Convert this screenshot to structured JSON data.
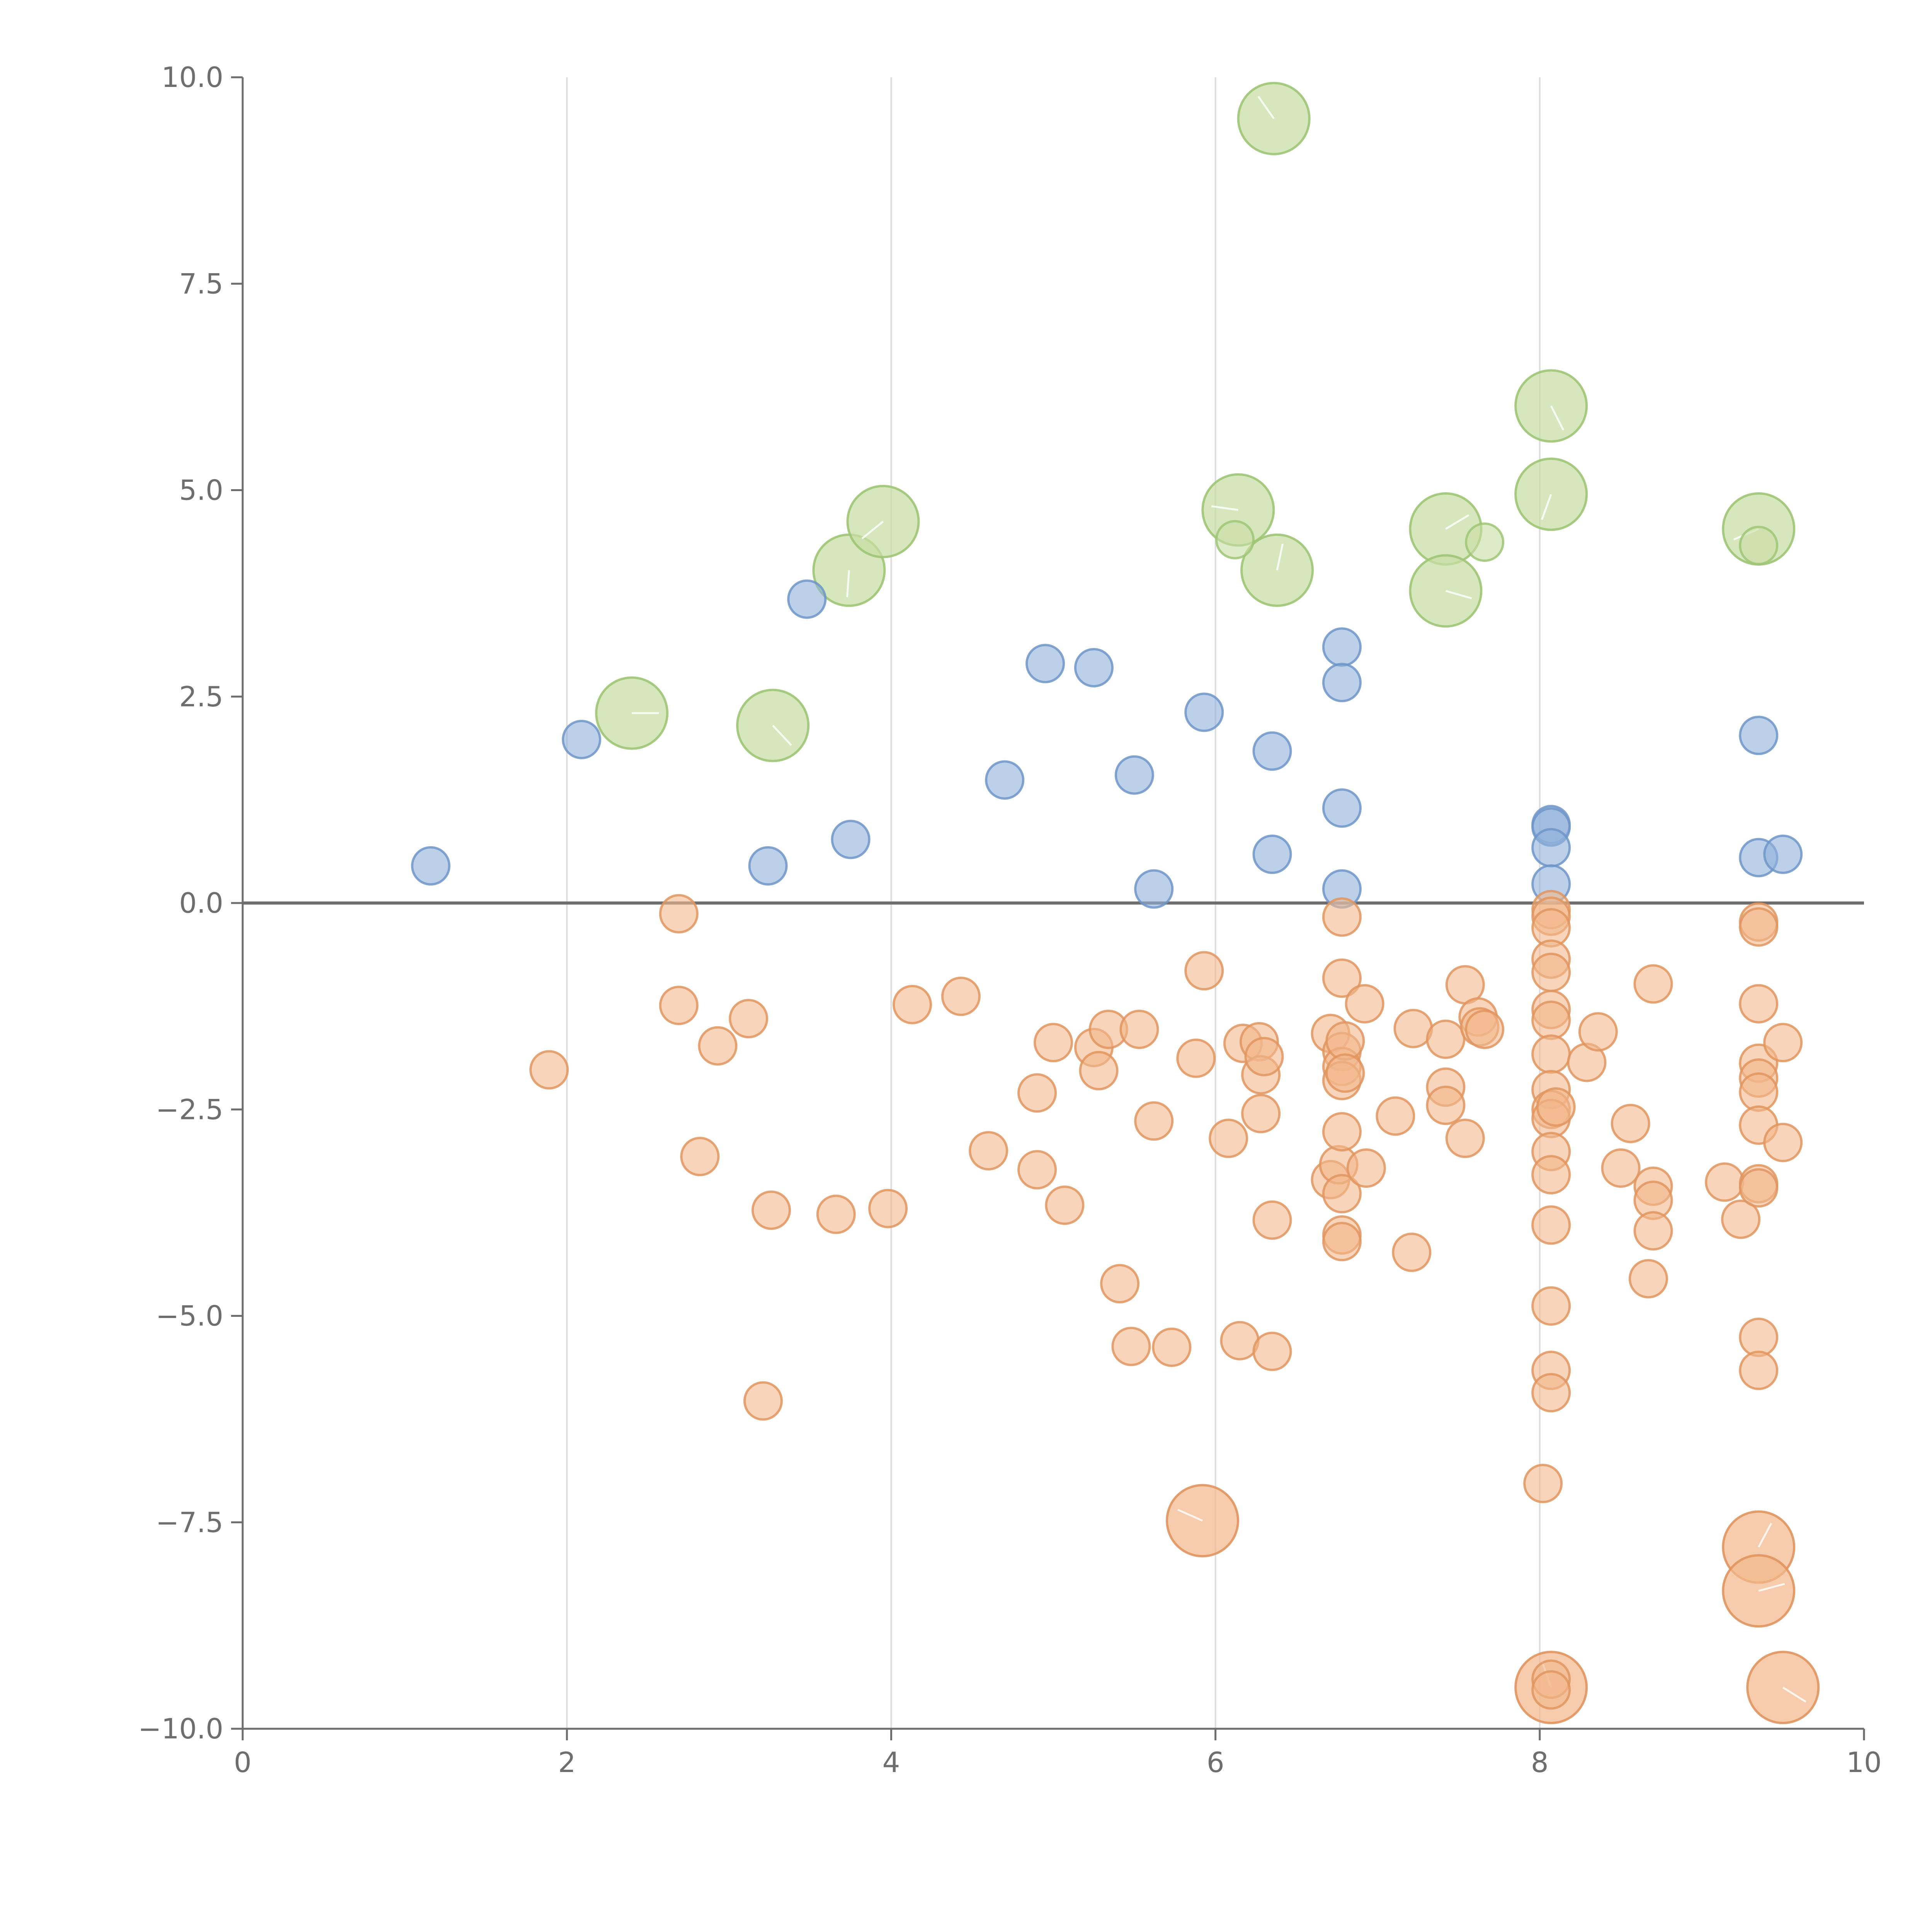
{
  "chart_data": {
    "type": "scatter",
    "title": "",
    "xlabel": "",
    "ylabel": "",
    "xlim": [
      0,
      10
    ],
    "ylim": [
      -10,
      10
    ],
    "x_ticks": [
      0,
      2,
      4,
      6,
      8,
      10
    ],
    "y_ticks": [
      10.0,
      7.5,
      5.0,
      2.5,
      0.0,
      -2.5,
      -5.0,
      -7.5,
      -10.0
    ],
    "x_tick_labels": [
      "0",
      "2",
      "4",
      "6",
      "8",
      "10"
    ],
    "y_tick_labels": [
      "10.0",
      "7.5",
      "5.0",
      "2.5",
      "0.0",
      "−2.5",
      "−5.0",
      "−7.5",
      "−10.0"
    ],
    "grid": {
      "x": true,
      "y": false
    },
    "zero_line": true,
    "series": [
      {
        "color": "#8fb0da",
        "stroke": "#6f95c8",
        "points": [
          [
            1.16,
            0.45
          ],
          [
            2.09,
            1.98
          ],
          [
            3.24,
            0.45
          ],
          [
            3.48,
            3.68
          ],
          [
            3.75,
            0.77
          ],
          [
            4.7,
            1.49
          ],
          [
            4.95,
            2.9
          ],
          [
            5.25,
            2.85
          ],
          [
            5.5,
            1.55
          ],
          [
            5.62,
            0.17
          ],
          [
            5.93,
            2.31
          ],
          [
            6.35,
            1.84
          ],
          [
            6.35,
            0.59
          ],
          [
            6.78,
            3.1
          ],
          [
            6.78,
            2.67
          ],
          [
            6.78,
            1.15
          ],
          [
            6.78,
            0.17
          ],
          [
            8.07,
            0.95
          ],
          [
            8.07,
            0.92
          ],
          [
            8.07,
            0.67
          ],
          [
            8.07,
            0.23
          ],
          [
            9.35,
            2.03
          ],
          [
            9.35,
            0.55
          ],
          [
            9.5,
            0.59
          ]
        ]
      },
      {
        "color": "#f2b88c",
        "stroke": "#e0955f",
        "points": [
          [
            1.89,
            -2.02
          ],
          [
            2.69,
            -0.13
          ],
          [
            2.69,
            -1.24
          ],
          [
            2.82,
            -3.07
          ],
          [
            2.93,
            -1.73
          ],
          [
            3.12,
            -1.4
          ],
          [
            3.21,
            -6.03
          ],
          [
            3.26,
            -3.72
          ],
          [
            3.66,
            -3.77
          ],
          [
            3.98,
            -3.7
          ],
          [
            4.13,
            -1.23
          ],
          [
            4.43,
            -1.13
          ],
          [
            4.6,
            -3.0
          ],
          [
            4.9,
            -2.3
          ],
          [
            4.9,
            -3.23
          ],
          [
            5.0,
            -1.69
          ],
          [
            5.07,
            -3.66
          ],
          [
            5.25,
            -1.75
          ],
          [
            5.28,
            -2.03
          ],
          [
            5.34,
            -1.53
          ],
          [
            5.41,
            -4.61
          ],
          [
            5.48,
            -5.37
          ],
          [
            5.53,
            -1.53
          ],
          [
            5.62,
            -2.64
          ],
          [
            5.73,
            -5.38
          ],
          [
            5.88,
            -1.88
          ],
          [
            5.93,
            -0.82
          ],
          [
            6.08,
            -2.85
          ],
          [
            6.15,
            -5.3
          ],
          [
            6.17,
            -1.7
          ],
          [
            6.27,
            -1.68
          ],
          [
            6.28,
            -2.08
          ],
          [
            6.28,
            -2.55
          ],
          [
            6.3,
            -1.86
          ],
          [
            6.35,
            -3.84
          ],
          [
            6.35,
            -5.43
          ],
          [
            6.71,
            -1.58
          ],
          [
            6.71,
            -3.35
          ],
          [
            6.76,
            -3.17
          ],
          [
            6.78,
            -0.17
          ],
          [
            6.78,
            -0.91
          ],
          [
            6.78,
            -1.8
          ],
          [
            6.78,
            -1.98
          ],
          [
            6.78,
            -2.15
          ],
          [
            6.78,
            -2.77
          ],
          [
            6.78,
            -3.52
          ],
          [
            6.78,
            -4.02
          ],
          [
            6.78,
            -4.1
          ],
          [
            6.8,
            -1.67
          ],
          [
            6.8,
            -2.06
          ],
          [
            6.92,
            -1.22
          ],
          [
            6.93,
            -3.21
          ],
          [
            7.11,
            -2.58
          ],
          [
            7.21,
            -4.23
          ],
          [
            7.22,
            -1.52
          ],
          [
            7.42,
            -1.65
          ],
          [
            7.42,
            -2.23
          ],
          [
            7.42,
            -2.45
          ],
          [
            7.54,
            -0.99
          ],
          [
            7.54,
            -2.85
          ],
          [
            7.62,
            -1.38
          ],
          [
            7.63,
            -1.5
          ],
          [
            7.66,
            -1.53
          ],
          [
            8.02,
            -7.03
          ],
          [
            8.07,
            -0.08
          ],
          [
            8.07,
            -0.16
          ],
          [
            8.07,
            -0.3
          ],
          [
            8.07,
            -0.68
          ],
          [
            8.07,
            -0.84
          ],
          [
            8.07,
            -1.29
          ],
          [
            8.07,
            -1.42
          ],
          [
            8.07,
            -1.83
          ],
          [
            8.07,
            -2.26
          ],
          [
            8.07,
            -2.5
          ],
          [
            8.07,
            -2.61
          ],
          [
            8.07,
            -3.01
          ],
          [
            8.07,
            -3.29
          ],
          [
            8.07,
            -3.9
          ],
          [
            8.07,
            -4.88
          ],
          [
            8.07,
            -5.66
          ],
          [
            8.07,
            -5.93
          ],
          [
            8.07,
            -9.4
          ],
          [
            8.07,
            -9.53
          ],
          [
            8.1,
            -2.47
          ],
          [
            8.29,
            -1.93
          ],
          [
            8.36,
            -1.56
          ],
          [
            8.5,
            -3.21
          ],
          [
            8.56,
            -2.67
          ],
          [
            8.67,
            -4.55
          ],
          [
            8.7,
            -0.98
          ],
          [
            8.7,
            -3.43
          ],
          [
            8.7,
            -3.6
          ],
          [
            8.7,
            -3.97
          ],
          [
            9.14,
            -3.38
          ],
          [
            9.24,
            -3.83
          ],
          [
            9.35,
            -0.23
          ],
          [
            9.35,
            -0.29
          ],
          [
            9.35,
            -1.22
          ],
          [
            9.35,
            -1.94
          ],
          [
            9.35,
            -2.12
          ],
          [
            9.35,
            -2.29
          ],
          [
            9.35,
            -2.69
          ],
          [
            9.35,
            -3.4
          ],
          [
            9.35,
            -3.45
          ],
          [
            9.35,
            -5.26
          ],
          [
            9.35,
            -5.66
          ],
          [
            9.5,
            -1.69
          ],
          [
            9.5,
            -2.9
          ]
        ]
      },
      {
        "color": "#c8dea3",
        "stroke": "#9fc575",
        "points": [
          [
            6.12,
            4.4
          ],
          [
            7.66,
            4.37
          ],
          [
            9.35,
            4.33
          ]
        ]
      }
    ],
    "bubbles": [
      {
        "x": 2.4,
        "y": 2.3,
        "group": "green"
      },
      {
        "x": 3.27,
        "y": 2.15,
        "group": "green"
      },
      {
        "x": 3.74,
        "y": 4.03,
        "group": "green"
      },
      {
        "x": 3.95,
        "y": 4.62,
        "group": "green"
      },
      {
        "x": 6.14,
        "y": 4.76,
        "group": "green"
      },
      {
        "x": 6.36,
        "y": 9.5,
        "group": "green"
      },
      {
        "x": 6.38,
        "y": 4.03,
        "group": "green"
      },
      {
        "x": 7.42,
        "y": 4.53,
        "group": "green"
      },
      {
        "x": 7.42,
        "y": 3.78,
        "group": "green"
      },
      {
        "x": 8.07,
        "y": 6.02,
        "group": "green"
      },
      {
        "x": 8.07,
        "y": 4.95,
        "group": "green"
      },
      {
        "x": 9.35,
        "y": 4.53,
        "group": "green"
      },
      {
        "x": 5.92,
        "y": -7.48,
        "group": "orange"
      },
      {
        "x": 8.07,
        "y": -9.5,
        "group": "orange"
      },
      {
        "x": 9.35,
        "y": -7.8,
        "group": "orange"
      },
      {
        "x": 9.35,
        "y": -8.33,
        "group": "orange"
      },
      {
        "x": 9.5,
        "y": -9.5,
        "group": "orange"
      }
    ],
    "group_colors": {
      "green": {
        "fill": "#c8dea3",
        "stroke": "#9fc575"
      },
      "orange": {
        "fill": "#f2b88c",
        "stroke": "#e0955f"
      }
    }
  }
}
